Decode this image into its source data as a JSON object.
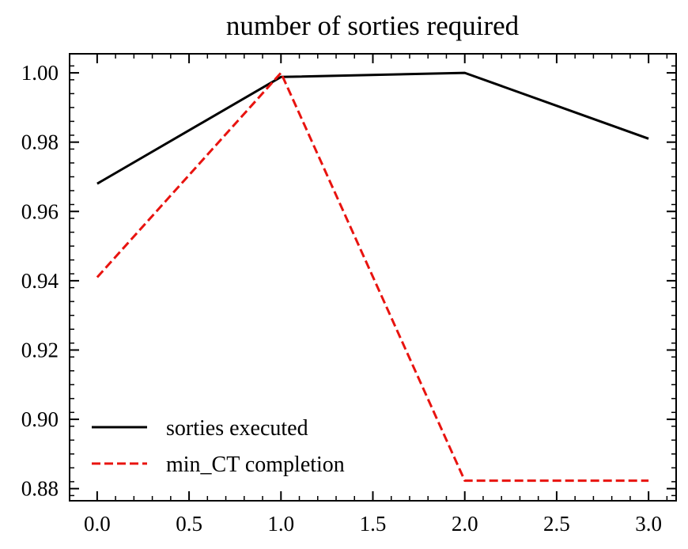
{
  "chart_data": {
    "type": "line",
    "title": "number of sorties required",
    "xlabel": "",
    "ylabel": "",
    "xlim": [
      -0.15,
      3.15
    ],
    "ylim": [
      0.8765,
      1.0055
    ],
    "x_ticks": [
      0.0,
      0.5,
      1.0,
      1.5,
      2.0,
      2.5,
      3.0
    ],
    "x_tick_labels": [
      "0.0",
      "0.5",
      "1.0",
      "1.5",
      "2.0",
      "2.5",
      "3.0"
    ],
    "y_ticks": [
      0.88,
      0.9,
      0.92,
      0.94,
      0.96,
      0.98,
      1.0
    ],
    "y_tick_labels": [
      "0.88",
      "0.90",
      "0.92",
      "0.94",
      "0.96",
      "0.98",
      "1.00"
    ],
    "grid": false,
    "legend_position": "lower-left",
    "series": [
      {
        "name": "sorties executed",
        "x": [
          0,
          1,
          2,
          3
        ],
        "y": [
          0.968,
          0.9988,
          1.0,
          0.981
        ],
        "color": "#000000",
        "style": "solid"
      },
      {
        "name": "min_CT completion",
        "x": [
          0,
          1,
          2,
          3
        ],
        "y": [
          0.941,
          1.0,
          0.8823,
          0.8823
        ],
        "color": "#e8130f",
        "style": "dashed"
      }
    ]
  }
}
